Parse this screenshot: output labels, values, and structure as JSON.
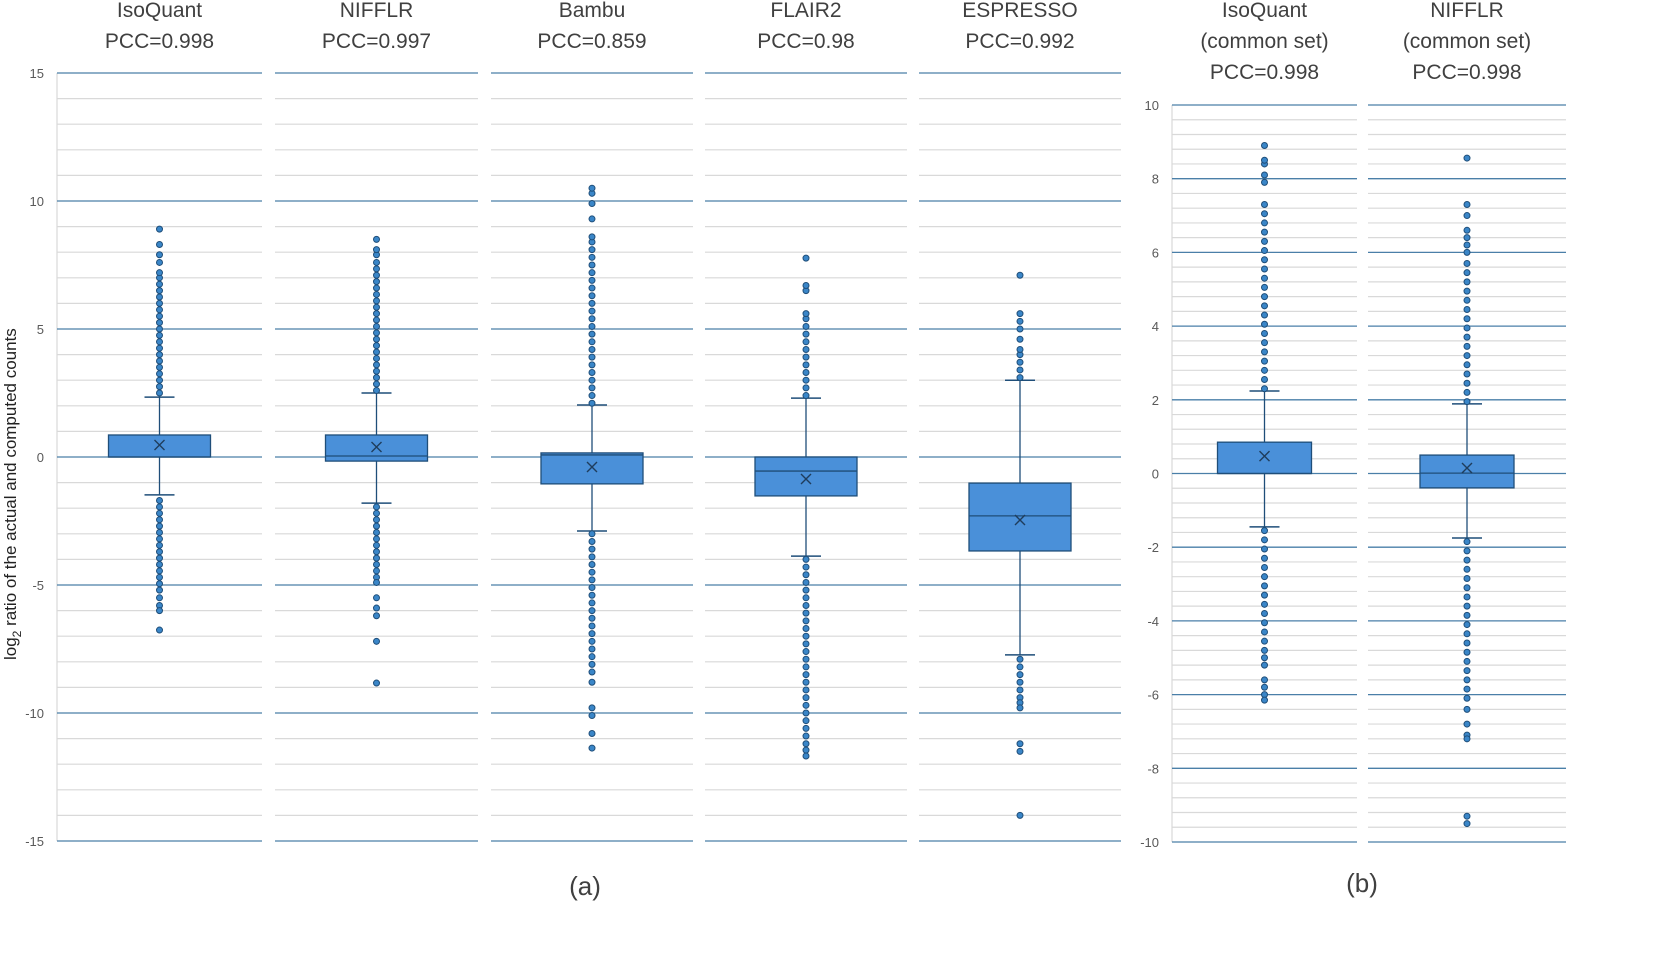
{
  "chart_data": [
    {
      "type": "box",
      "panel_label": "(a)",
      "ylabel_prefix": "log",
      "ylabel_sub": "2",
      "ylabel_rest": " ratio of the actual and computed counts",
      "ylim": [
        -15,
        15
      ],
      "yticks": [
        15,
        10,
        5,
        0,
        -5,
        -10,
        -15
      ],
      "grid": true,
      "color": "#4a90d9",
      "edge_color": "#1f4e79",
      "series": [
        {
          "name": "IsoQuant",
          "subtitle": "PCC=0.998",
          "whisker_high": 2.34,
          "q3": 0.86,
          "median": 0.0,
          "q1": 0.0,
          "whisker_low": -1.48,
          "mean": 0.47,
          "outliers": [
            2.5,
            2.75,
            3.0,
            3.25,
            3.5,
            3.75,
            4.0,
            4.25,
            4.5,
            4.75,
            5.0,
            5.25,
            5.5,
            5.75,
            6.0,
            6.25,
            6.5,
            6.75,
            7.0,
            7.2,
            7.6,
            7.9,
            8.3,
            8.9,
            -1.7,
            -1.95,
            -2.2,
            -2.45,
            -2.7,
            -2.95,
            -3.2,
            -3.45,
            -3.7,
            -3.95,
            -4.2,
            -4.45,
            -4.7,
            -4.95,
            -5.2,
            -5.5,
            -5.8,
            -6.0,
            -6.76
          ]
        },
        {
          "name": "NIFFLR",
          "subtitle": "PCC=0.997",
          "whisker_high": 2.5,
          "q3": 0.86,
          "median": 0.04,
          "q1": -0.16,
          "whisker_low": -1.8,
          "mean": 0.39,
          "outliers": [
            2.6,
            2.85,
            3.1,
            3.35,
            3.6,
            3.85,
            4.1,
            4.35,
            4.6,
            4.85,
            5.1,
            5.35,
            5.6,
            5.85,
            6.1,
            6.35,
            6.6,
            6.85,
            7.1,
            7.35,
            7.6,
            7.9,
            8.1,
            8.5,
            -1.95,
            -2.2,
            -2.45,
            -2.7,
            -2.95,
            -3.2,
            -3.45,
            -3.7,
            -3.95,
            -4.2,
            -4.45,
            -4.7,
            -4.9,
            -5.5,
            -5.9,
            -6.2,
            -7.2,
            -8.83
          ]
        },
        {
          "name": "Bambu",
          "subtitle": "PCC=0.859",
          "whisker_high": 2.03,
          "q3": 0.16,
          "median": 0.08,
          "q1": -1.05,
          "whisker_low": -2.89,
          "mean": -0.39,
          "outliers": [
            2.1,
            2.4,
            2.7,
            3.0,
            3.3,
            3.6,
            3.9,
            4.2,
            4.5,
            4.8,
            5.1,
            5.4,
            5.7,
            6.0,
            6.3,
            6.6,
            6.9,
            7.2,
            7.5,
            7.8,
            8.1,
            8.4,
            8.6,
            9.3,
            9.9,
            10.3,
            10.5,
            -3.0,
            -3.3,
            -3.6,
            -3.9,
            -4.2,
            -4.5,
            -4.8,
            -5.1,
            -5.4,
            -5.7,
            -6.0,
            -6.3,
            -6.6,
            -6.9,
            -7.2,
            -7.5,
            -7.8,
            -8.1,
            -8.4,
            -8.8,
            -9.8,
            -10.1,
            -10.8,
            -11.37
          ]
        },
        {
          "name": "FLAIR2",
          "subtitle": "PCC=0.98",
          "whisker_high": 2.3,
          "q3": 0.0,
          "median": -0.55,
          "q1": -1.52,
          "whisker_low": -3.87,
          "mean": -0.86,
          "outliers": [
            2.4,
            2.7,
            3.0,
            3.3,
            3.6,
            3.9,
            4.2,
            4.5,
            4.8,
            5.1,
            5.4,
            5.6,
            6.5,
            6.7,
            7.77,
            -4.0,
            -4.3,
            -4.6,
            -4.9,
            -5.2,
            -5.5,
            -5.8,
            -6.1,
            -6.4,
            -6.7,
            -7.0,
            -7.3,
            -7.6,
            -7.9,
            -8.2,
            -8.5,
            -8.8,
            -9.1,
            -9.4,
            -9.7,
            -10.0,
            -10.3,
            -10.6,
            -10.9,
            -11.2,
            -11.45,
            -11.68
          ]
        },
        {
          "name": "ESPRESSO",
          "subtitle": "PCC=0.992",
          "whisker_high": 3.0,
          "q3": -1.02,
          "median": -2.3,
          "q1": -3.67,
          "whisker_low": -7.73,
          "mean": -2.46,
          "outliers": [
            3.1,
            3.4,
            3.7,
            4.0,
            4.2,
            4.6,
            5.0,
            5.3,
            5.6,
            7.1,
            -7.9,
            -8.2,
            -8.5,
            -8.8,
            -9.1,
            -9.4,
            -9.6,
            -9.8,
            -11.2,
            -11.5,
            -14.0
          ]
        }
      ]
    },
    {
      "type": "box",
      "panel_label": "(b)",
      "ylim": [
        -10,
        10
      ],
      "yticks": [
        10,
        8,
        6,
        4,
        2,
        0,
        -2,
        -4,
        -6,
        -8,
        -10
      ],
      "grid": true,
      "color": "#4a90d9",
      "edge_color": "#1f4e79",
      "series": [
        {
          "name": "IsoQuant",
          "name2": "(common set)",
          "subtitle": "PCC=0.998",
          "whisker_high": 2.24,
          "q3": 0.85,
          "median": 0.0,
          "q1": 0.0,
          "whisker_low": -1.45,
          "mean": 0.47,
          "outliers": [
            2.3,
            2.55,
            2.8,
            3.05,
            3.3,
            3.55,
            3.8,
            4.05,
            4.3,
            4.55,
            4.8,
            5.05,
            5.3,
            5.55,
            5.8,
            6.05,
            6.3,
            6.55,
            6.8,
            7.05,
            7.3,
            7.9,
            8.1,
            8.4,
            8.5,
            8.9,
            -1.55,
            -1.8,
            -2.05,
            -2.3,
            -2.55,
            -2.8,
            -3.05,
            -3.3,
            -3.55,
            -3.8,
            -4.05,
            -4.3,
            -4.55,
            -4.8,
            -5.0,
            -5.2,
            -5.6,
            -5.8,
            -6.0,
            -6.15
          ]
        },
        {
          "name": "NIFFLR",
          "name2": "(common set)",
          "subtitle": "PCC=0.998",
          "whisker_high": 1.89,
          "q3": 0.5,
          "median": 0.01,
          "q1": -0.39,
          "whisker_low": -1.75,
          "mean": 0.15,
          "outliers": [
            1.95,
            2.2,
            2.45,
            2.7,
            2.95,
            3.2,
            3.45,
            3.7,
            3.95,
            4.2,
            4.45,
            4.7,
            4.95,
            5.2,
            5.45,
            5.7,
            6.0,
            6.2,
            6.4,
            6.6,
            7.0,
            7.3,
            8.56,
            -1.85,
            -2.1,
            -2.35,
            -2.6,
            -2.85,
            -3.1,
            -3.35,
            -3.6,
            -3.85,
            -4.1,
            -4.35,
            -4.6,
            -4.85,
            -5.1,
            -5.35,
            -5.6,
            -5.85,
            -6.1,
            -6.4,
            -6.8,
            -7.1,
            -7.2,
            -9.3,
            -9.5
          ]
        }
      ]
    }
  ]
}
